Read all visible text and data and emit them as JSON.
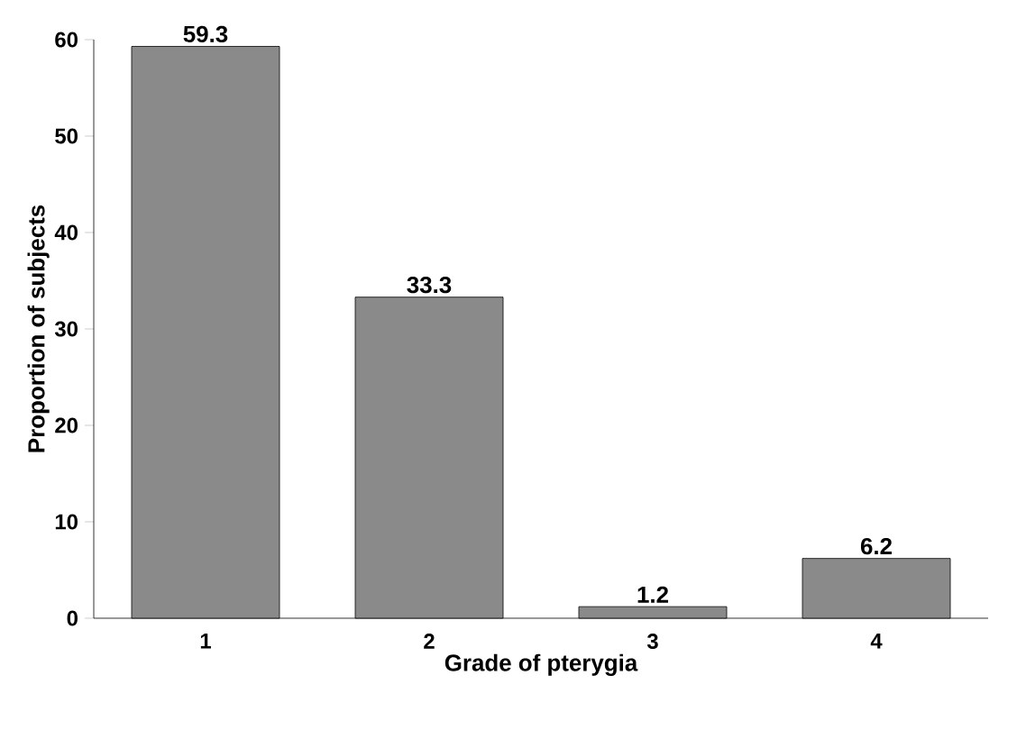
{
  "chart_data": {
    "type": "bar",
    "xlabel": "Grade of pterygia",
    "ylabel": "Proportion of subjects",
    "categories": [
      "1",
      "2",
      "3",
      "4"
    ],
    "values": [
      59.3,
      33.3,
      1.2,
      6.2
    ],
    "value_labels": [
      "59.3",
      "33.3",
      "1.2",
      "6.2"
    ],
    "color": "#8a8a8a",
    "ylim": [
      0,
      60
    ],
    "yticks": [
      0,
      10,
      20,
      30,
      40,
      50,
      60
    ]
  }
}
